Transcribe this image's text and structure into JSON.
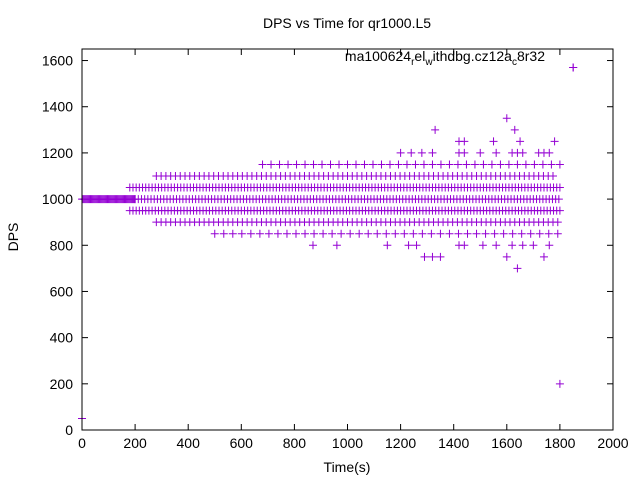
{
  "chart_data": {
    "type": "scatter",
    "title": "DPS vs Time for qr1000.L5",
    "xlabel": "Time(s)",
    "ylabel": "DPS",
    "xlim": [
      0,
      2000
    ],
    "ylim": [
      0,
      1650
    ],
    "xticks": [
      0,
      200,
      400,
      600,
      800,
      1000,
      1200,
      1400,
      1600,
      1800,
      2000
    ],
    "yticks": [
      0,
      200,
      400,
      600,
      800,
      1000,
      1200,
      1400,
      1600
    ],
    "legend": {
      "label": "ma100624_rel_withdbg.cz12a_c8r32",
      "label_parts": [
        "ma100624",
        "r",
        "el",
        "w",
        "ithdbg.cz12a",
        "c",
        "8r32"
      ],
      "position": "top-right"
    },
    "marker": "+",
    "color": "#9400d3",
    "series": [
      {
        "name": "ma100624_rel_withdbg.cz12a_c8r32",
        "dense_band": {
          "x_start": 0,
          "x_end": 200,
          "x_step": 4,
          "y": 1000
        },
        "rows": [
          {
            "y": 1050,
            "x_start": 180,
            "x_end": 1800,
            "x_step": 12
          },
          {
            "y": 950,
            "x_start": 180,
            "x_end": 1800,
            "x_step": 12
          },
          {
            "y": 1000,
            "x_start": 200,
            "x_end": 1800,
            "x_step": 12
          },
          {
            "y": 1100,
            "x_start": 280,
            "x_end": 1780,
            "x_step": 18
          },
          {
            "y": 900,
            "x_start": 280,
            "x_end": 1800,
            "x_step": 18
          },
          {
            "y": 1150,
            "x_start": 680,
            "x_end": 1800,
            "x_step": 32
          },
          {
            "y": 850,
            "x_start": 500,
            "x_end": 1800,
            "x_step": 34
          }
        ],
        "points": [
          [
            0,
            50
          ],
          [
            1800,
            200
          ],
          [
            1640,
            700
          ],
          [
            1600,
            750
          ],
          [
            1290,
            750
          ],
          [
            1320,
            750
          ],
          [
            1350,
            750
          ],
          [
            1740,
            750
          ],
          [
            870,
            800
          ],
          [
            960,
            800
          ],
          [
            1150,
            800
          ],
          [
            1230,
            800
          ],
          [
            1260,
            800
          ],
          [
            1420,
            800
          ],
          [
            1440,
            800
          ],
          [
            1510,
            800
          ],
          [
            1560,
            800
          ],
          [
            1620,
            800
          ],
          [
            1660,
            800
          ],
          [
            1700,
            800
          ],
          [
            1760,
            800
          ],
          [
            1720,
            1200
          ],
          [
            1740,
            1200
          ],
          [
            1760,
            1200
          ],
          [
            1200,
            1200
          ],
          [
            1240,
            1200
          ],
          [
            1280,
            1200
          ],
          [
            1320,
            1200
          ],
          [
            1420,
            1200
          ],
          [
            1440,
            1200
          ],
          [
            1500,
            1200
          ],
          [
            1560,
            1200
          ],
          [
            1620,
            1200
          ],
          [
            1640,
            1200
          ],
          [
            1660,
            1200
          ],
          [
            1420,
            1250
          ],
          [
            1440,
            1250
          ],
          [
            1550,
            1250
          ],
          [
            1650,
            1250
          ],
          [
            1780,
            1250
          ],
          [
            1330,
            1300
          ],
          [
            1630,
            1300
          ],
          [
            1600,
            1350
          ],
          [
            1850,
            1570
          ]
        ]
      }
    ]
  }
}
